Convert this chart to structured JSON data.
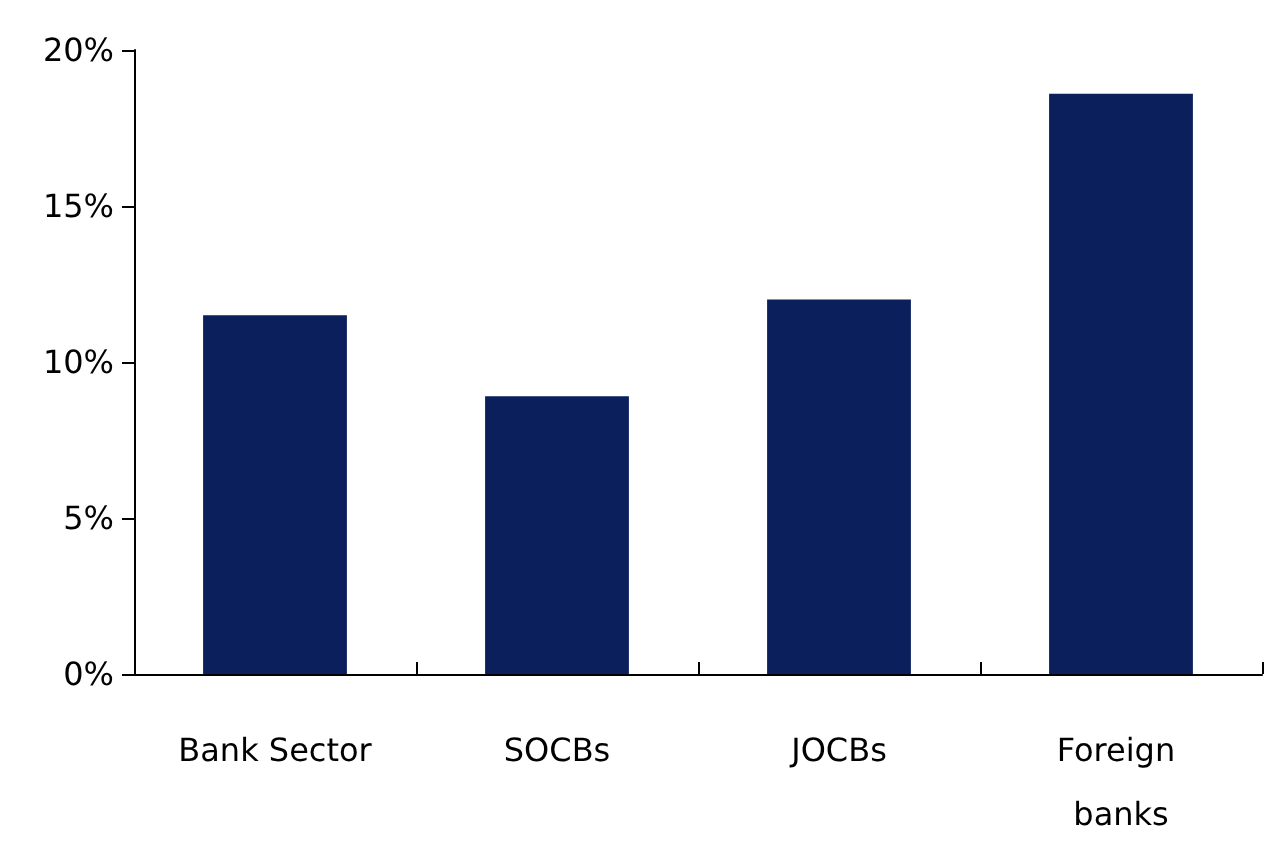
{
  "chart_data": {
    "type": "bar",
    "categories": [
      "Bank Sector",
      "SOCBs",
      "JOCBs",
      "Foreign banks"
    ],
    "values": [
      11.5,
      8.9,
      12.0,
      18.6
    ],
    "color": "#0a1f5c",
    "ylim": [
      0,
      20
    ],
    "yticks": [
      {
        "value": 0,
        "label": "0%"
      },
      {
        "value": 5,
        "label": "5%"
      },
      {
        "value": 10,
        "label": "10%"
      },
      {
        "value": 15,
        "label": "15%"
      },
      {
        "value": 20,
        "label": "20%"
      }
    ]
  }
}
